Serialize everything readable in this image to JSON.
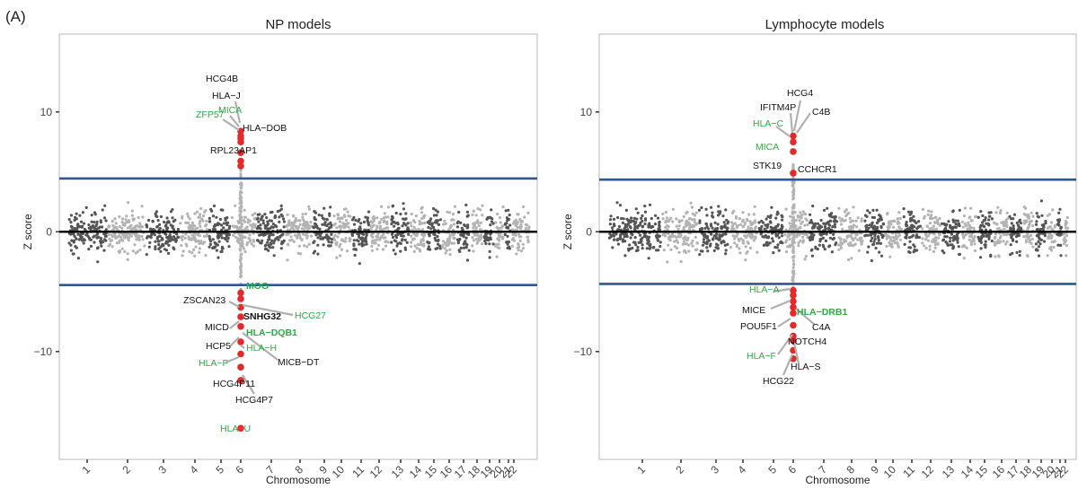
{
  "figure": {
    "panel_letter": "(A)"
  },
  "colors": {
    "dark_points": "#555555",
    "light_points": "#b3b3b3",
    "highlight": "#e32a2a",
    "threshold_line": "#2b5797",
    "zero_line": "#000000",
    "label_green": "#2eaa44",
    "label_black": "#111111",
    "leader": "#b0b0b0"
  },
  "chart_data": [
    {
      "type": "scatter",
      "title": "NP models",
      "xlabel": "Chromosome",
      "ylabel": "Z score",
      "ylim": [
        -19,
        16.5
      ],
      "yticks": [
        10,
        0,
        -10
      ],
      "x_tick_labels": [
        "1",
        "2",
        "3",
        "4",
        "5",
        "6",
        "7",
        "8",
        "9",
        "10",
        "11",
        "12",
        "13",
        "14",
        "15",
        "16",
        "17",
        "18",
        "19",
        "20",
        "21",
        "22"
      ],
      "thresholds": [
        4.45,
        -4.45
      ],
      "highlight_chromosome": "6",
      "highlighted_points": [
        8.4,
        8.0,
        7.8,
        7.5,
        6.6,
        5.9,
        5.5,
        -5.1,
        -5.6,
        -6.3,
        -7.1,
        -7.9,
        -9.2,
        -10.2,
        -11.3,
        -12.4,
        -16.4
      ],
      "genes": [
        {
          "name": "HCG4B",
          "y": 13.0,
          "color": "black"
        },
        {
          "name": "HLA−J",
          "y": 11.5,
          "color": "black"
        },
        {
          "name": "MICA",
          "y": 10.0,
          "color": "green"
        },
        {
          "name": "ZFP57",
          "y": 9.6,
          "color": "green"
        },
        {
          "name": "HLA−DOB",
          "y": 8.5,
          "color": "black"
        },
        {
          "name": "RPL23AP1",
          "y": 6.6,
          "color": "black"
        },
        {
          "name": "MOG",
          "y": -5.1,
          "color": "green"
        },
        {
          "name": "ZSCAN23",
          "y": -6.3,
          "color": "black"
        },
        {
          "name": "HCG27",
          "y": -7.7,
          "color": "green"
        },
        {
          "name": "SNHG32",
          "y": -7.7,
          "color": "black"
        },
        {
          "name": "MICD",
          "y": -8.6,
          "color": "black"
        },
        {
          "name": "HLA−DQB1",
          "y": -9.2,
          "color": "green"
        },
        {
          "name": "HCP5",
          "y": -10.3,
          "color": "black"
        },
        {
          "name": "HLA−H",
          "y": -10.4,
          "color": "green"
        },
        {
          "name": "HLA−F",
          "y": -11.6,
          "color": "green"
        },
        {
          "name": "MICB−DT",
          "y": -11.6,
          "color": "black"
        },
        {
          "name": "HCG4P11",
          "y": -13.6,
          "color": "black"
        },
        {
          "name": "HCG4P7",
          "y": -14.9,
          "color": "black"
        },
        {
          "name": "HLA−U",
          "y": -17.4,
          "color": "green"
        }
      ]
    },
    {
      "type": "scatter",
      "title": "Lymphocyte models",
      "xlabel": "Chromosome",
      "ylabel": "Z score",
      "ylim": [
        -19,
        16.5
      ],
      "yticks": [
        10,
        0,
        -10
      ],
      "x_tick_labels": [
        "1",
        "2",
        "3",
        "4",
        "5",
        "6",
        "7",
        "8",
        "9",
        "10",
        "11",
        "12",
        "13",
        "14",
        "15",
        "16",
        "17",
        "18",
        "19",
        "20",
        "21",
        "22"
      ],
      "thresholds": [
        4.35,
        -4.35
      ],
      "highlight_chromosome": "6",
      "highlighted_points": [
        8.0,
        7.5,
        6.7,
        4.9,
        -4.9,
        -5.3,
        -5.8,
        -6.3,
        -6.8,
        -7.8,
        -8.7,
        -9.1,
        -9.9,
        -10.6
      ],
      "genes": [
        {
          "name": "HCG4",
          "y": 9.4,
          "color": "black"
        },
        {
          "name": "IFITM4P",
          "y": 10.3,
          "color": "black"
        },
        {
          "name": "C4B",
          "y": 9.8,
          "color": "black"
        },
        {
          "name": "HLA−C",
          "y": 8.9,
          "color": "green"
        },
        {
          "name": "MICA",
          "y": 6.7,
          "color": "green"
        },
        {
          "name": "STK19",
          "y": 5.1,
          "color": "black"
        },
        {
          "name": "CCHCR1",
          "y": 4.9,
          "color": "black"
        },
        {
          "name": "HLA−A",
          "y": -5.3,
          "color": "green"
        },
        {
          "name": "HLA−DRB1",
          "y": -7.3,
          "color": "green"
        },
        {
          "name": "MICE",
          "y": -7.3,
          "color": "black"
        },
        {
          "name": "C4A",
          "y": -8.6,
          "color": "black"
        },
        {
          "name": "POU5F1",
          "y": -8.5,
          "color": "black"
        },
        {
          "name": "NOTCH4",
          "y": -10.0,
          "color": "black"
        },
        {
          "name": "HLA−F",
          "y": -11.2,
          "color": "green"
        },
        {
          "name": "HLA−S",
          "y": -12.2,
          "color": "black"
        },
        {
          "name": "HCG22",
          "y": -13.4,
          "color": "black"
        }
      ]
    }
  ]
}
